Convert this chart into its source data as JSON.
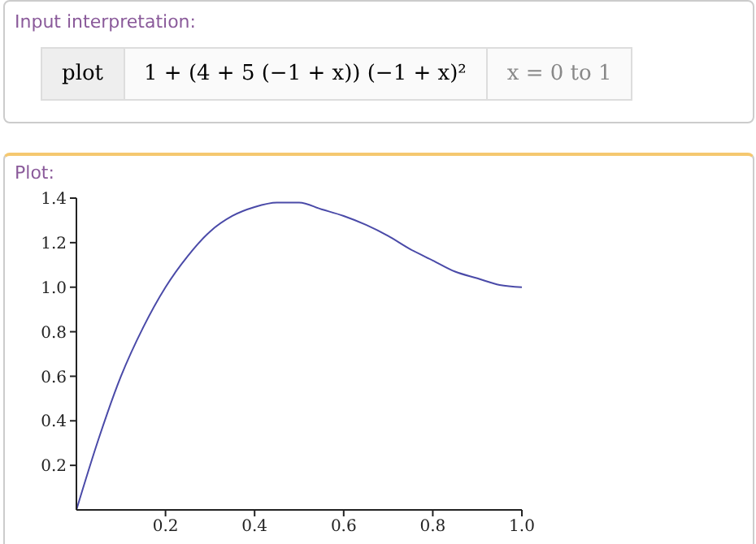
{
  "chart_data": {
    "type": "line",
    "title": "Plot:",
    "annotations": [
      "Input interpretation:",
      "plot",
      "1 + (4 + 5 (−1 + x)) (−1 + x)²",
      "x = 0 to 1"
    ],
    "x": [
      0,
      0.05,
      0.1,
      0.15,
      0.2,
      0.25,
      0.3,
      0.35,
      0.4,
      0.45,
      0.5,
      0.55,
      0.6,
      0.65,
      0.7,
      0.75,
      0.8,
      0.85,
      0.9,
      0.95,
      1
    ],
    "series": [
      {
        "color": "#4a4aa8",
        "values": [
          0,
          0.32,
          0.6,
          0.82,
          1.0,
          1.14,
          1.25,
          1.32,
          1.36,
          1.38,
          1.38,
          1.35,
          1.32,
          1.28,
          1.23,
          1.17,
          1.12,
          1.07,
          1.04,
          1.01,
          1.0
        ]
      }
    ],
    "xlim": [
      0,
      1
    ],
    "ylim": [
      0,
      1.4
    ],
    "xticks": [
      0.2,
      0.4,
      0.6,
      0.8,
      {
        "value": 1,
        "label": "1.0"
      }
    ],
    "yticks": [
      0.2,
      0.4,
      0.6,
      0.8,
      {
        "value": 1,
        "label": "1.0"
      },
      1.2,
      1.4
    ],
    "marker": "none",
    "line_style": "solid"
  }
}
